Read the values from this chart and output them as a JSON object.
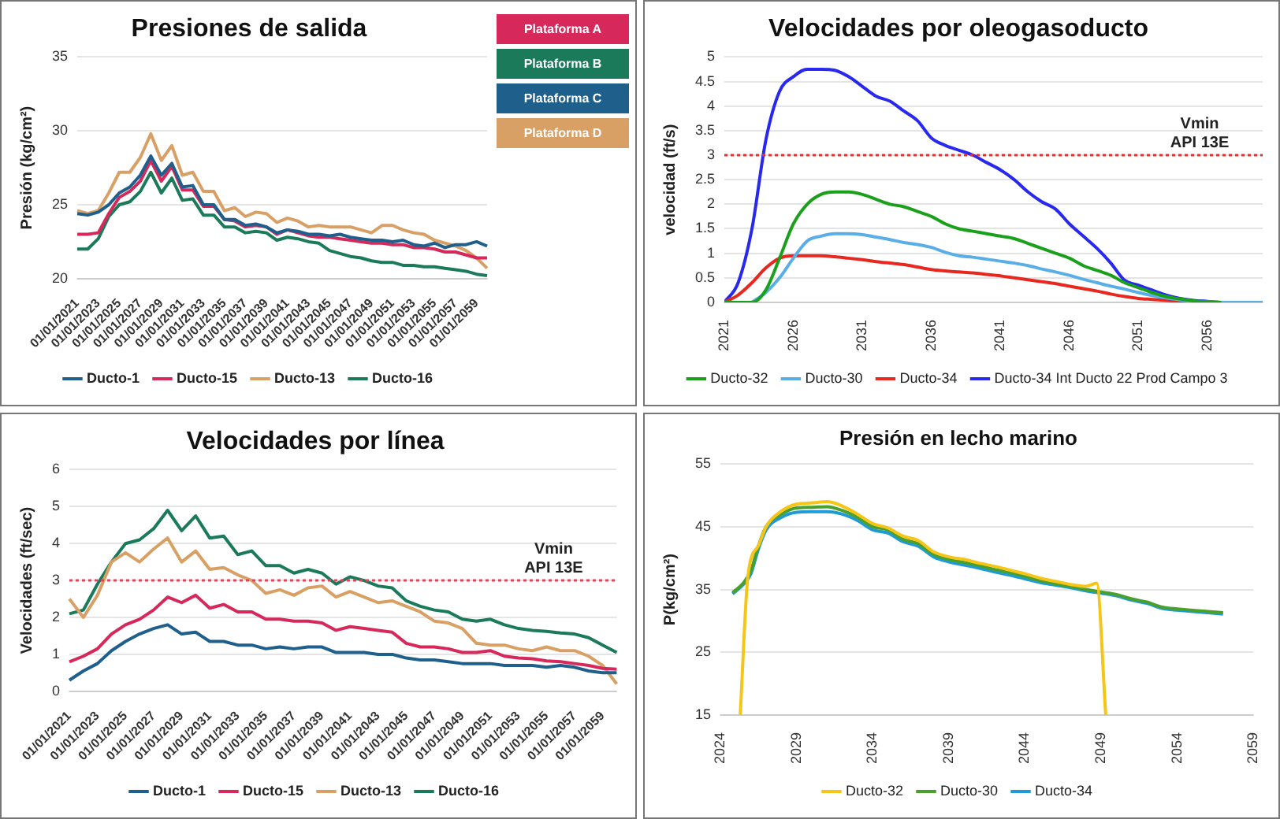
{
  "chart_data": [
    {
      "type": "line",
      "title": "Presiones de salida",
      "ylabel": "Presión (kg/cm²)",
      "marker": "none",
      "grid": "y",
      "legend": "bottom",
      "categories": [
        "01/01/2021",
        null,
        "01/01/2023",
        null,
        "01/01/2025",
        null,
        "01/01/2027",
        null,
        "01/01/2029",
        null,
        "01/01/2031",
        null,
        "01/01/2033",
        null,
        "01/01/2035",
        null,
        "01/01/2037",
        null,
        "01/01/2039",
        null,
        "01/01/2041",
        null,
        "01/01/2043",
        null,
        "01/01/2045",
        null,
        "01/01/2047",
        null,
        "01/01/2049",
        null,
        "01/01/2051",
        null,
        "01/01/2053",
        null,
        "01/01/2055",
        null,
        "01/01/2057",
        null,
        "01/01/2059",
        null
      ],
      "ylim": [
        20,
        35
      ],
      "yticks": [
        20,
        25,
        30,
        35
      ],
      "annotations": [
        "Plataforma A",
        "Plataforma B",
        "Plataforma C",
        "Plataforma D"
      ],
      "series": [
        {
          "name": "Ducto-1",
          "color": "#1f5f8b",
          "values": [
            24.4,
            24.3,
            24.5,
            25.0,
            25.8,
            26.2,
            27.0,
            28.3,
            27.0,
            27.8,
            26.2,
            26.3,
            25.0,
            25.0,
            24.0,
            24.0,
            23.6,
            23.7,
            23.5,
            23.1,
            23.3,
            23.2,
            23.0,
            23.0,
            22.9,
            23.0,
            22.8,
            22.7,
            22.6,
            22.6,
            22.5,
            22.6,
            22.3,
            22.2,
            22.4,
            22.1,
            22.3,
            22.3,
            22.5,
            22.2
          ]
        },
        {
          "name": "Ducto-15",
          "color": "#d6285a",
          "values": [
            23.0,
            23.0,
            23.1,
            24.4,
            25.5,
            25.9,
            26.6,
            28.0,
            26.6,
            27.6,
            26.0,
            26.0,
            24.9,
            24.9,
            24.0,
            23.9,
            23.5,
            23.6,
            23.5,
            23.0,
            23.3,
            23.1,
            22.9,
            22.8,
            22.8,
            22.7,
            22.6,
            22.5,
            22.4,
            22.4,
            22.3,
            22.3,
            22.1,
            22.1,
            22.0,
            21.8,
            21.8,
            21.6,
            21.4,
            21.4
          ]
        },
        {
          "name": "Ducto-13",
          "color": "#d9a066",
          "values": [
            24.6,
            24.4,
            24.6,
            25.8,
            27.2,
            27.2,
            28.2,
            29.8,
            28.0,
            29.0,
            27.0,
            27.2,
            25.9,
            25.9,
            24.6,
            24.8,
            24.2,
            24.5,
            24.4,
            23.8,
            24.1,
            23.9,
            23.5,
            23.6,
            23.5,
            23.5,
            23.5,
            23.3,
            23.1,
            23.6,
            23.6,
            23.3,
            23.1,
            23.0,
            22.6,
            22.4,
            22.2,
            21.9,
            21.4,
            20.7
          ]
        },
        {
          "name": "Ducto-16",
          "color": "#1a7a5a",
          "values": [
            22.0,
            22.0,
            22.7,
            24.2,
            25.0,
            25.2,
            25.9,
            27.2,
            25.8,
            26.8,
            25.3,
            25.4,
            24.3,
            24.3,
            23.5,
            23.5,
            23.1,
            23.2,
            23.1,
            22.6,
            22.8,
            22.7,
            22.5,
            22.4,
            21.9,
            21.7,
            21.5,
            21.4,
            21.2,
            21.1,
            21.1,
            20.9,
            20.9,
            20.8,
            20.8,
            20.7,
            20.6,
            20.5,
            20.3,
            20.2
          ]
        }
      ]
    },
    {
      "type": "line",
      "title": "Velocidades por oleogasoducto",
      "ylabel": "velocidad (ft/s)",
      "marker": "none",
      "grid": "y",
      "legend": "bottom",
      "x": [
        2021,
        2022,
        2023,
        2024,
        2025,
        2026,
        2027,
        2028,
        2029,
        2030,
        2031,
        2032,
        2033,
        2034,
        2035,
        2036,
        2037,
        2038,
        2039,
        2040,
        2041,
        2042,
        2043,
        2044,
        2045,
        2046,
        2047,
        2048,
        2049,
        2050,
        2051,
        2052,
        2053,
        2054,
        2055,
        2056,
        2057,
        2058,
        2059,
        2060
      ],
      "xlim": [
        2021,
        2060
      ],
      "xticks": [
        2021,
        2026,
        2031,
        2036,
        2041,
        2046,
        2051,
        2056
      ],
      "ylim": [
        0,
        5
      ],
      "yticks": [
        0,
        0.5,
        1,
        1.5,
        2,
        2.5,
        3,
        3.5,
        4,
        4.5,
        5
      ],
      "ref_lines": [
        {
          "axis": "y",
          "value": 3,
          "label": "Vmin\nAPI 13E",
          "color": "#e83030",
          "line_style": "dotted"
        }
      ],
      "series": [
        {
          "name": "Ducto-32",
          "color": "#1aa01a",
          "values": [
            0,
            0,
            0,
            0.25,
            0.9,
            1.6,
            2.0,
            2.2,
            2.25,
            2.25,
            2.2,
            2.1,
            2.0,
            1.95,
            1.85,
            1.75,
            1.6,
            1.5,
            1.45,
            1.4,
            1.35,
            1.3,
            1.2,
            1.1,
            1.0,
            0.9,
            0.75,
            0.65,
            0.55,
            0.4,
            0.3,
            0.2,
            0.12,
            0.07,
            0.03,
            0.01,
            0,
            null,
            null,
            null
          ]
        },
        {
          "name": "Ducto-30",
          "color": "#5aaee8",
          "values": [
            null,
            null,
            0,
            0.2,
            0.5,
            0.9,
            1.25,
            1.35,
            1.4,
            1.4,
            1.38,
            1.33,
            1.28,
            1.22,
            1.18,
            1.12,
            1.02,
            0.95,
            0.92,
            0.88,
            0.84,
            0.8,
            0.75,
            0.68,
            0.62,
            0.55,
            0.47,
            0.4,
            0.33,
            0.27,
            0.2,
            0.14,
            0.09,
            0.05,
            0.02,
            0.01,
            0,
            0,
            0,
            0
          ]
        },
        {
          "name": "Ducto-34",
          "color": "#e8281e",
          "values": [
            0,
            0.15,
            0.4,
            0.7,
            0.9,
            0.95,
            0.95,
            0.95,
            0.93,
            0.9,
            0.87,
            0.83,
            0.8,
            0.77,
            0.72,
            0.67,
            0.64,
            0.62,
            0.6,
            0.57,
            0.54,
            0.5,
            0.46,
            0.42,
            0.38,
            0.33,
            0.28,
            0.23,
            0.17,
            0.12,
            0.08,
            0.06,
            0.04,
            0.02,
            0,
            0,
            null,
            null,
            null,
            null
          ]
        },
        {
          "name": "Ducto-34 Int Ducto 22 Prod Campo 3",
          "color": "#2828f0",
          "values": [
            0,
            0.4,
            1.5,
            3.3,
            4.3,
            4.6,
            4.75,
            4.75,
            4.73,
            4.6,
            4.4,
            4.2,
            4.1,
            3.9,
            3.7,
            3.35,
            3.2,
            3.1,
            3.0,
            2.85,
            2.7,
            2.5,
            2.25,
            2.05,
            1.9,
            1.6,
            1.35,
            1.1,
            0.8,
            0.45,
            0.35,
            0.25,
            0.15,
            0.08,
            0.04,
            0.02,
            0,
            0,
            null,
            null
          ]
        }
      ]
    },
    {
      "type": "line",
      "title": "Velocidades por línea",
      "ylabel": "Velocidades (ft/sec)",
      "marker": "none",
      "grid": "y",
      "legend": "bottom",
      "categories": [
        "01/01/2021",
        null,
        "01/01/2023",
        null,
        "01/01/2025",
        null,
        "01/01/2027",
        null,
        "01/01/2029",
        null,
        "01/01/2031",
        null,
        "01/01/2033",
        null,
        "01/01/2035",
        null,
        "01/01/2037",
        null,
        "01/01/2039",
        null,
        "01/01/2041",
        null,
        "01/01/2043",
        null,
        "01/01/2045",
        null,
        "01/01/2047",
        null,
        "01/01/2049",
        null,
        "01/01/2051",
        null,
        "01/01/2053",
        null,
        "01/01/2055",
        null,
        "01/01/2057",
        null,
        "01/01/2059",
        null
      ],
      "ylim": [
        0,
        6
      ],
      "yticks": [
        0,
        1,
        2,
        3,
        4,
        5,
        6
      ],
      "ref_lines": [
        {
          "axis": "y",
          "value": 3,
          "label": "Vmin\nAPI 13E",
          "color": "#e8405a",
          "line_style": "dotted"
        }
      ],
      "series": [
        {
          "name": "Ducto-1",
          "color": "#1f5f8b",
          "values": [
            0.3,
            0.55,
            0.75,
            1.1,
            1.35,
            1.55,
            1.7,
            1.8,
            1.55,
            1.6,
            1.35,
            1.35,
            1.25,
            1.25,
            1.15,
            1.2,
            1.15,
            1.2,
            1.2,
            1.05,
            1.05,
            1.05,
            1.0,
            1.0,
            0.9,
            0.85,
            0.85,
            0.8,
            0.75,
            0.75,
            0.75,
            0.7,
            0.7,
            0.7,
            0.65,
            0.7,
            0.65,
            0.55,
            0.5,
            0.5
          ]
        },
        {
          "name": "Ducto-15",
          "color": "#d6285a",
          "values": [
            0.8,
            0.95,
            1.15,
            1.55,
            1.8,
            1.95,
            2.2,
            2.55,
            2.4,
            2.6,
            2.25,
            2.35,
            2.15,
            2.15,
            1.95,
            1.95,
            1.9,
            1.9,
            1.85,
            1.65,
            1.75,
            1.7,
            1.65,
            1.6,
            1.3,
            1.2,
            1.2,
            1.15,
            1.05,
            1.05,
            1.1,
            0.95,
            0.9,
            0.88,
            0.82,
            0.8,
            0.75,
            0.7,
            0.62,
            0.6
          ]
        },
        {
          "name": "Ducto-13",
          "color": "#d9a066",
          "values": [
            2.5,
            2.0,
            2.6,
            3.5,
            3.75,
            3.5,
            3.85,
            4.15,
            3.5,
            3.8,
            3.3,
            3.35,
            3.15,
            3.0,
            2.65,
            2.75,
            2.6,
            2.8,
            2.85,
            2.55,
            2.7,
            2.55,
            2.4,
            2.45,
            2.3,
            2.15,
            1.9,
            1.85,
            1.7,
            1.3,
            1.25,
            1.25,
            1.15,
            1.1,
            1.2,
            1.1,
            1.1,
            0.95,
            0.7,
            0.2
          ]
        },
        {
          "name": "Ducto-16",
          "color": "#1a7a5a",
          "values": [
            2.1,
            2.2,
            2.9,
            3.5,
            4.0,
            4.1,
            4.4,
            4.9,
            4.35,
            4.75,
            4.15,
            4.2,
            3.7,
            3.8,
            3.4,
            3.4,
            3.2,
            3.3,
            3.2,
            2.9,
            3.1,
            3.0,
            2.85,
            2.8,
            2.45,
            2.3,
            2.2,
            2.15,
            1.95,
            1.9,
            1.95,
            1.8,
            1.7,
            1.65,
            1.62,
            1.58,
            1.55,
            1.45,
            1.25,
            1.05
          ]
        }
      ]
    },
    {
      "type": "line",
      "title": "Presión en lecho marino",
      "ylabel": "P(kg/cm²)",
      "marker": "none",
      "grid": "y",
      "legend": "bottom",
      "xlim": [
        2024,
        2059
      ],
      "xticks": [
        2024,
        2029,
        2034,
        2039,
        2044,
        2049,
        2054,
        2059
      ],
      "ylim": [
        15,
        55
      ],
      "yticks": [
        15,
        25,
        35,
        45,
        55
      ],
      "series": [
        {
          "name": "Ducto-32",
          "color": "#f5c518",
          "x": [
            2025.3,
            2025.8,
            2026.5,
            2027,
            2028,
            2029,
            2030,
            2031,
            2032,
            2033,
            2034,
            2035,
            2036,
            2037,
            2038,
            2039,
            2040,
            2041,
            2042,
            2043,
            2044,
            2045,
            2046,
            2047,
            2048,
            2048.7,
            2049.3
          ],
          "values": [
            15,
            37,
            42,
            45,
            47.5,
            48.6,
            48.8,
            49.0,
            48.3,
            47,
            45.5,
            44.8,
            43.5,
            42.8,
            41,
            40.2,
            39.8,
            39.2,
            38.7,
            38.1,
            37.5,
            36.8,
            36.3,
            35.8,
            35.5,
            36,
            15
          ]
        },
        {
          "name": "Ducto-30",
          "color": "#4aa02c",
          "x": [
            2024.8,
            2025.5,
            2026,
            2026.5,
            2027,
            2028,
            2029,
            2030,
            2031,
            2032,
            2033,
            2034,
            2035,
            2036,
            2037,
            2038,
            2039,
            2040,
            2041,
            2042,
            2043,
            2044,
            2045,
            2046,
            2047,
            2048,
            2049,
            2050,
            2051,
            2052,
            2053,
            2054,
            2055,
            2056,
            2057
          ],
          "values": [
            34.5,
            36,
            38,
            42,
            45,
            47,
            48,
            48.1,
            48.2,
            47.6,
            46.5,
            45,
            44.5,
            43,
            42.3,
            40.6,
            39.8,
            39.3,
            38.8,
            38.2,
            37.7,
            37.1,
            36.4,
            35.9,
            35.5,
            35.0,
            34.6,
            34.2,
            33.5,
            33.0,
            32.2,
            31.9,
            31.7,
            31.5,
            31.3
          ]
        },
        {
          "name": "Ducto-34",
          "color": "#1e9bd7",
          "x": [
            2024.8,
            2025.5,
            2026,
            2026.5,
            2027,
            2028,
            2029,
            2030,
            2031,
            2032,
            2033,
            2034,
            2035,
            2036,
            2037,
            2038,
            2039,
            2040,
            2041,
            2042,
            2043,
            2044,
            2045,
            2046,
            2047,
            2048,
            2049,
            2050,
            2051,
            2052,
            2053,
            2054,
            2055,
            2056,
            2057
          ],
          "values": [
            34.3,
            35.8,
            37.5,
            41.5,
            44.5,
            46.5,
            47.3,
            47.4,
            47.4,
            47,
            46,
            44.5,
            44,
            42.6,
            41.9,
            40.2,
            39.4,
            38.9,
            38.4,
            37.8,
            37.3,
            36.7,
            36.1,
            35.7,
            35.3,
            34.8,
            34.4,
            34.0,
            33.3,
            32.8,
            32.0,
            31.7,
            31.5,
            31.3,
            31.1
          ]
        }
      ]
    }
  ]
}
